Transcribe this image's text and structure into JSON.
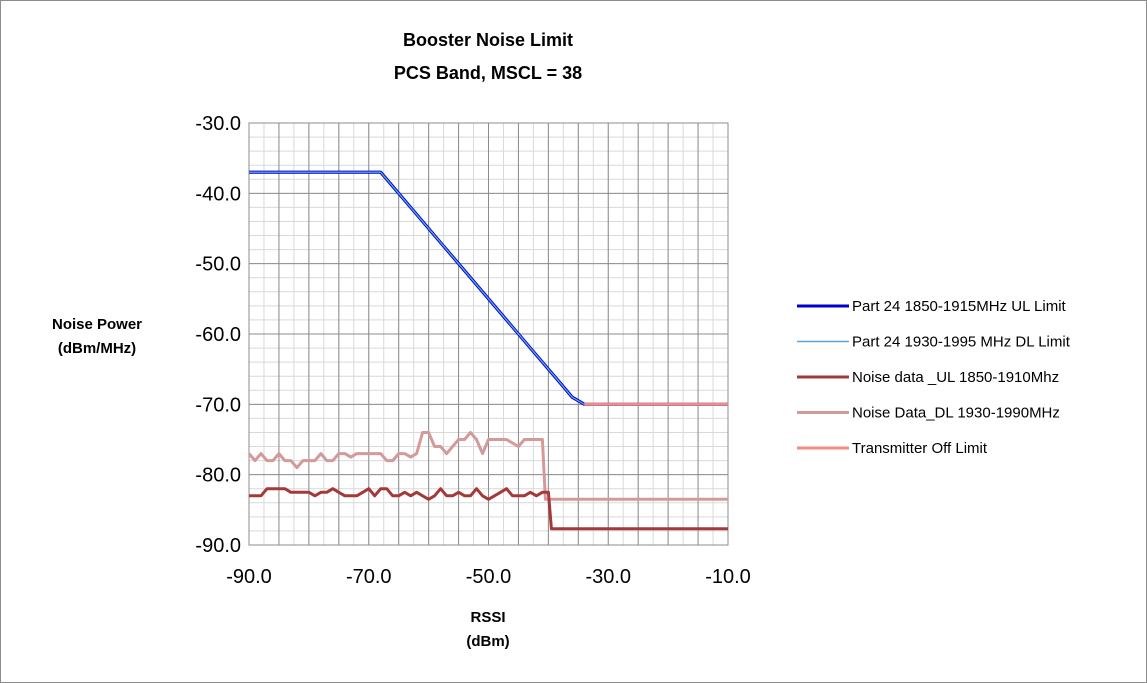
{
  "chart_data": {
    "type": "line",
    "title": [
      "Booster Noise  Limit",
      "PCS Band, MSCL = 38"
    ],
    "xlabel": [
      "RSSI",
      "(dBm)"
    ],
    "ylabel": [
      "Noise Power",
      "(dBm/MHz)"
    ],
    "xlim": [
      -90,
      -10
    ],
    "ylim": [
      -90,
      -30
    ],
    "x_ticks": [
      -90,
      -70,
      -50,
      -30,
      -10
    ],
    "x_tick_labels": [
      "-90.0",
      "-70.0",
      "-50.0",
      "-30.0",
      "-10.0"
    ],
    "y_ticks": [
      -30,
      -40,
      -50,
      -60,
      -70,
      -80,
      -90
    ],
    "y_tick_labels": [
      "-30.0",
      "-40.0",
      "-50.0",
      "-60.0",
      "-70.0",
      "-80.0",
      "-90.0"
    ],
    "grid": true,
    "legend_position": "right",
    "series": [
      {
        "name": "Part 24 1850-1915MHz UL Limit",
        "color": "#0000cc",
        "points": [
          [
            -90,
            -37
          ],
          [
            -68,
            -37
          ],
          [
            -66,
            -39
          ],
          [
            -62,
            -43
          ],
          [
            -58,
            -47
          ],
          [
            -54,
            -51
          ],
          [
            -50,
            -55
          ],
          [
            -46,
            -59
          ],
          [
            -42,
            -63
          ],
          [
            -38,
            -67
          ],
          [
            -36,
            -69
          ],
          [
            -34,
            -70
          ],
          [
            -10,
            -70
          ]
        ]
      },
      {
        "name": "Part 24 1930-1995 MHz DL Limit",
        "color": "#5ba3e0",
        "points": [
          [
            -90,
            -37
          ],
          [
            -68,
            -37
          ],
          [
            -66,
            -39
          ],
          [
            -62,
            -43
          ],
          [
            -58,
            -47
          ],
          [
            -54,
            -51
          ],
          [
            -50,
            -55
          ],
          [
            -46,
            -59
          ],
          [
            -42,
            -63
          ],
          [
            -38,
            -67
          ],
          [
            -36,
            -69
          ],
          [
            -34,
            -70
          ],
          [
            -10,
            -70
          ]
        ]
      },
      {
        "name": "Noise data _UL 1850-1910Mhz",
        "color": "#a33a3a",
        "points": [
          [
            -90,
            -83
          ],
          [
            -88,
            -83
          ],
          [
            -87,
            -82
          ],
          [
            -85,
            -82
          ],
          [
            -84,
            -82
          ],
          [
            -83,
            -82.5
          ],
          [
            -82,
            -82.5
          ],
          [
            -81,
            -82.5
          ],
          [
            -80,
            -82.5
          ],
          [
            -79,
            -83
          ],
          [
            -78,
            -82.5
          ],
          [
            -77,
            -82.5
          ],
          [
            -76,
            -82
          ],
          [
            -75,
            -82.5
          ],
          [
            -74,
            -83
          ],
          [
            -73,
            -83
          ],
          [
            -72,
            -83
          ],
          [
            -71,
            -82.5
          ],
          [
            -70,
            -82
          ],
          [
            -69,
            -83
          ],
          [
            -68,
            -82
          ],
          [
            -67,
            -82
          ],
          [
            -66,
            -83
          ],
          [
            -65,
            -83
          ],
          [
            -64,
            -82.5
          ],
          [
            -63,
            -83
          ],
          [
            -62,
            -82.5
          ],
          [
            -61,
            -83
          ],
          [
            -60,
            -83.5
          ],
          [
            -59,
            -83
          ],
          [
            -58,
            -82
          ],
          [
            -57,
            -83
          ],
          [
            -56,
            -83
          ],
          [
            -55,
            -82.5
          ],
          [
            -54,
            -83
          ],
          [
            -53,
            -83
          ],
          [
            -52,
            -82
          ],
          [
            -51,
            -83
          ],
          [
            -50,
            -83.5
          ],
          [
            -49,
            -83
          ],
          [
            -48,
            -82.5
          ],
          [
            -47,
            -82
          ],
          [
            -46,
            -83
          ],
          [
            -45,
            -83
          ],
          [
            -44,
            -83
          ],
          [
            -43,
            -82.5
          ],
          [
            -42,
            -83
          ],
          [
            -41,
            -82.5
          ],
          [
            -40,
            -82.5
          ],
          [
            -39.5,
            -87.7
          ],
          [
            -30,
            -87.7
          ],
          [
            -10,
            -87.7
          ]
        ]
      },
      {
        "name": "Noise Data_DL 1930-1990MHz",
        "color": "#d49a9a",
        "points": [
          [
            -90,
            -77
          ],
          [
            -89,
            -78
          ],
          [
            -88,
            -77
          ],
          [
            -87,
            -78
          ],
          [
            -86,
            -78
          ],
          [
            -85,
            -77
          ],
          [
            -84,
            -78
          ],
          [
            -83,
            -78
          ],
          [
            -82,
            -79
          ],
          [
            -81,
            -78
          ],
          [
            -80,
            -78
          ],
          [
            -79,
            -78
          ],
          [
            -78,
            -77
          ],
          [
            -77,
            -78
          ],
          [
            -76,
            -78
          ],
          [
            -75,
            -77
          ],
          [
            -74,
            -77
          ],
          [
            -73,
            -77.5
          ],
          [
            -72,
            -77
          ],
          [
            -71,
            -77
          ],
          [
            -70,
            -77
          ],
          [
            -69,
            -77
          ],
          [
            -68,
            -77
          ],
          [
            -67,
            -78
          ],
          [
            -66,
            -78
          ],
          [
            -65,
            -77
          ],
          [
            -64,
            -77
          ],
          [
            -63,
            -77.5
          ],
          [
            -62,
            -77
          ],
          [
            -61,
            -74
          ],
          [
            -60,
            -74
          ],
          [
            -59,
            -76
          ],
          [
            -58,
            -76
          ],
          [
            -57,
            -77
          ],
          [
            -56,
            -76
          ],
          [
            -55,
            -75
          ],
          [
            -54,
            -75
          ],
          [
            -53,
            -74
          ],
          [
            -52,
            -75
          ],
          [
            -51,
            -77
          ],
          [
            -50,
            -75
          ],
          [
            -49,
            -75
          ],
          [
            -48,
            -75
          ],
          [
            -47,
            -75
          ],
          [
            -46,
            -75.5
          ],
          [
            -45,
            -76
          ],
          [
            -44,
            -75
          ],
          [
            -43,
            -75
          ],
          [
            -42,
            -75
          ],
          [
            -41,
            -75
          ],
          [
            -40.5,
            -83.5
          ],
          [
            -30,
            -83.5
          ],
          [
            -10,
            -83.5
          ]
        ]
      },
      {
        "name": "Transmitter Off Limit",
        "color": "#f08c84",
        "points": [
          [
            -34,
            -70
          ],
          [
            -10,
            -70
          ]
        ]
      }
    ]
  }
}
